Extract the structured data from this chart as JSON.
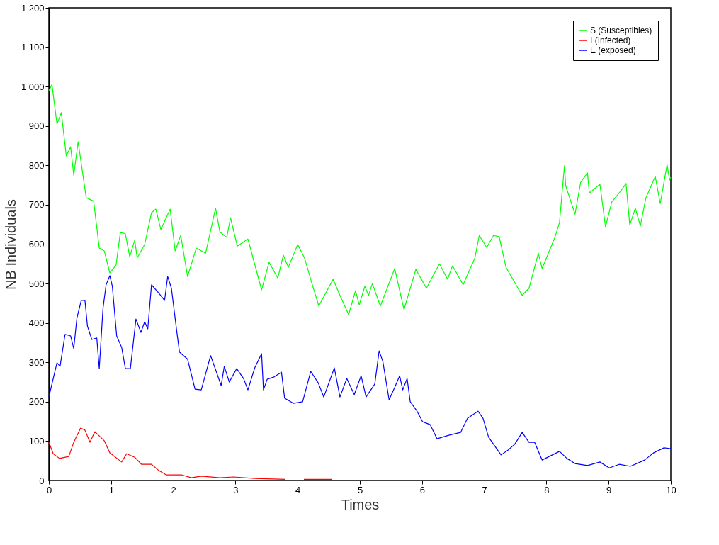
{
  "chart_data": {
    "type": "line",
    "xlabel": "Times",
    "ylabel": "NB Individuals",
    "xlim": [
      0,
      10
    ],
    "ylim": [
      0,
      1200
    ],
    "xticks": [
      0,
      1,
      2,
      3,
      4,
      5,
      6,
      7,
      8,
      9,
      10
    ],
    "yticks": [
      0,
      100,
      200,
      300,
      400,
      500,
      600,
      700,
      800,
      900,
      {
        "value": 1000,
        "label": "1 000"
      },
      {
        "value": 1100,
        "label": "1 100"
      },
      {
        "value": 1200,
        "label": "1 200"
      }
    ],
    "grid": false,
    "legend": "top right",
    "line_style": "solid",
    "marker": "none",
    "series": [
      {
        "name": "S (Susceptibles)",
        "color": "#00ff00",
        "x": [
          0,
          0.05,
          0.13,
          0.2,
          0.28,
          0.35,
          0.4,
          0.47,
          0.6,
          0.72,
          0.81,
          0.89,
          0.98,
          1.08,
          1.15,
          1.23,
          1.3,
          1.38,
          1.42,
          1.54,
          1.65,
          1.72,
          1.8,
          1.95,
          2.03,
          2.12,
          2.23,
          2.37,
          2.52,
          2.68,
          2.75,
          2.86,
          2.92,
          3.03,
          3.2,
          3.42,
          3.54,
          3.68,
          3.77,
          3.85,
          4.0,
          4.11,
          4.23,
          4.34,
          4.57,
          4.68,
          4.82,
          4.93,
          4.99,
          5.08,
          5.14,
          5.2,
          5.33,
          5.56,
          5.71,
          5.9,
          6.07,
          6.28,
          6.41,
          6.49,
          6.66,
          6.85,
          6.92,
          7.04,
          7.15,
          7.24,
          7.35,
          7.61,
          7.72,
          7.87,
          7.93,
          8.14,
          8.21,
          8.29,
          8.31,
          8.46,
          8.55,
          8.66,
          8.69,
          8.86,
          8.95,
          9.05,
          9.2,
          9.28,
          9.34,
          9.43,
          9.51,
          9.6,
          9.75,
          9.83,
          9.94,
          9.98,
          10
        ],
        "values": [
          990,
          1005,
          905,
          934,
          824,
          847,
          775,
          860,
          718,
          709,
          590,
          583,
          527,
          547,
          631,
          626,
          568,
          610,
          565,
          599,
          680,
          689,
          637,
          689,
          583,
          622,
          518,
          590,
          577,
          691,
          631,
          617,
          667,
          595,
          613,
          484,
          554,
          514,
          572,
          541,
          599,
          565,
          500,
          443,
          511,
          470,
          421,
          482,
          446,
          493,
          470,
          500,
          443,
          538,
          434,
          536,
          488,
          550,
          511,
          545,
          497,
          565,
          622,
          592,
          622,
          619,
          541,
          470,
          488,
          577,
          538,
          619,
          655,
          799,
          748,
          676,
          757,
          781,
          730,
          752,
          644,
          707,
          736,
          754,
          649,
          691,
          646,
          718,
          772,
          703,
          802,
          763,
          770
        ]
      },
      {
        "name": "I (Infected)",
        "color": "#ff0000",
        "x": [
          0,
          0.07,
          0.17,
          0.32,
          0.4,
          0.51,
          0.58,
          0.66,
          0.74,
          0.89,
          0.98,
          1.17,
          1.25,
          1.38,
          1.49,
          1.65,
          1.77,
          1.89,
          2.14,
          2.29,
          2.45,
          2.75,
          2.97,
          3.31,
          3.8,
          3.95,
          4.1,
          4.55
        ],
        "values": [
          97,
          68,
          56,
          61,
          97,
          133,
          128,
          97,
          124,
          101,
          70,
          47,
          68,
          59,
          41,
          41,
          25,
          14,
          14,
          7,
          11,
          7,
          9,
          5,
          3,
          null,
          3,
          3
        ]
      },
      {
        "name": "E (exposed)",
        "color": "#0000ff",
        "x": [
          0,
          0.13,
          0.18,
          0.26,
          0.35,
          0.4,
          0.45,
          0.52,
          0.58,
          0.62,
          0.69,
          0.77,
          0.81,
          0.87,
          0.92,
          0.98,
          1.02,
          1.09,
          1.17,
          1.23,
          1.31,
          1.4,
          1.48,
          1.54,
          1.59,
          1.65,
          1.77,
          1.86,
          1.91,
          1.97,
          2.06,
          2.1,
          2.23,
          2.35,
          2.45,
          2.6,
          2.69,
          2.77,
          2.82,
          2.9,
          3.02,
          3.13,
          3.2,
          3.31,
          3.42,
          3.45,
          3.51,
          3.62,
          3.74,
          3.79,
          3.93,
          4.08,
          4.21,
          4.33,
          4.42,
          4.59,
          4.68,
          4.79,
          4.91,
          5.02,
          5.1,
          5.24,
          5.31,
          5.37,
          5.47,
          5.56,
          5.64,
          5.69,
          5.76,
          5.81,
          5.92,
          6.01,
          6.13,
          6.24,
          6.43,
          6.62,
          6.73,
          6.9,
          6.98,
          7.07,
          7.27,
          7.38,
          7.49,
          7.61,
          7.72,
          7.81,
          7.93,
          8.21,
          8.33,
          8.46,
          8.66,
          8.86,
          9.01,
          9.17,
          9.35,
          9.58,
          9.72,
          9.89,
          10
        ],
        "values": [
          212,
          299,
          290,
          371,
          367,
          335,
          412,
          457,
          457,
          392,
          358,
          362,
          284,
          437,
          497,
          520,
          493,
          367,
          338,
          284,
          284,
          410,
          376,
          403,
          385,
          497,
          475,
          457,
          518,
          488,
          374,
          326,
          308,
          232,
          230,
          317,
          277,
          241,
          290,
          250,
          284,
          259,
          230,
          286,
          322,
          230,
          257,
          263,
          275,
          209,
          196,
          200,
          277,
          248,
          212,
          286,
          212,
          259,
          218,
          266,
          212,
          245,
          329,
          302,
          205,
          236,
          266,
          230,
          259,
          200,
          176,
          149,
          142,
          106,
          115,
          122,
          158,
          176,
          158,
          110,
          65,
          77,
          92,
          122,
          97,
          97,
          52,
          74,
          56,
          43,
          38,
          47,
          32,
          41,
          36,
          52,
          70,
          83,
          81
        ]
      }
    ]
  }
}
